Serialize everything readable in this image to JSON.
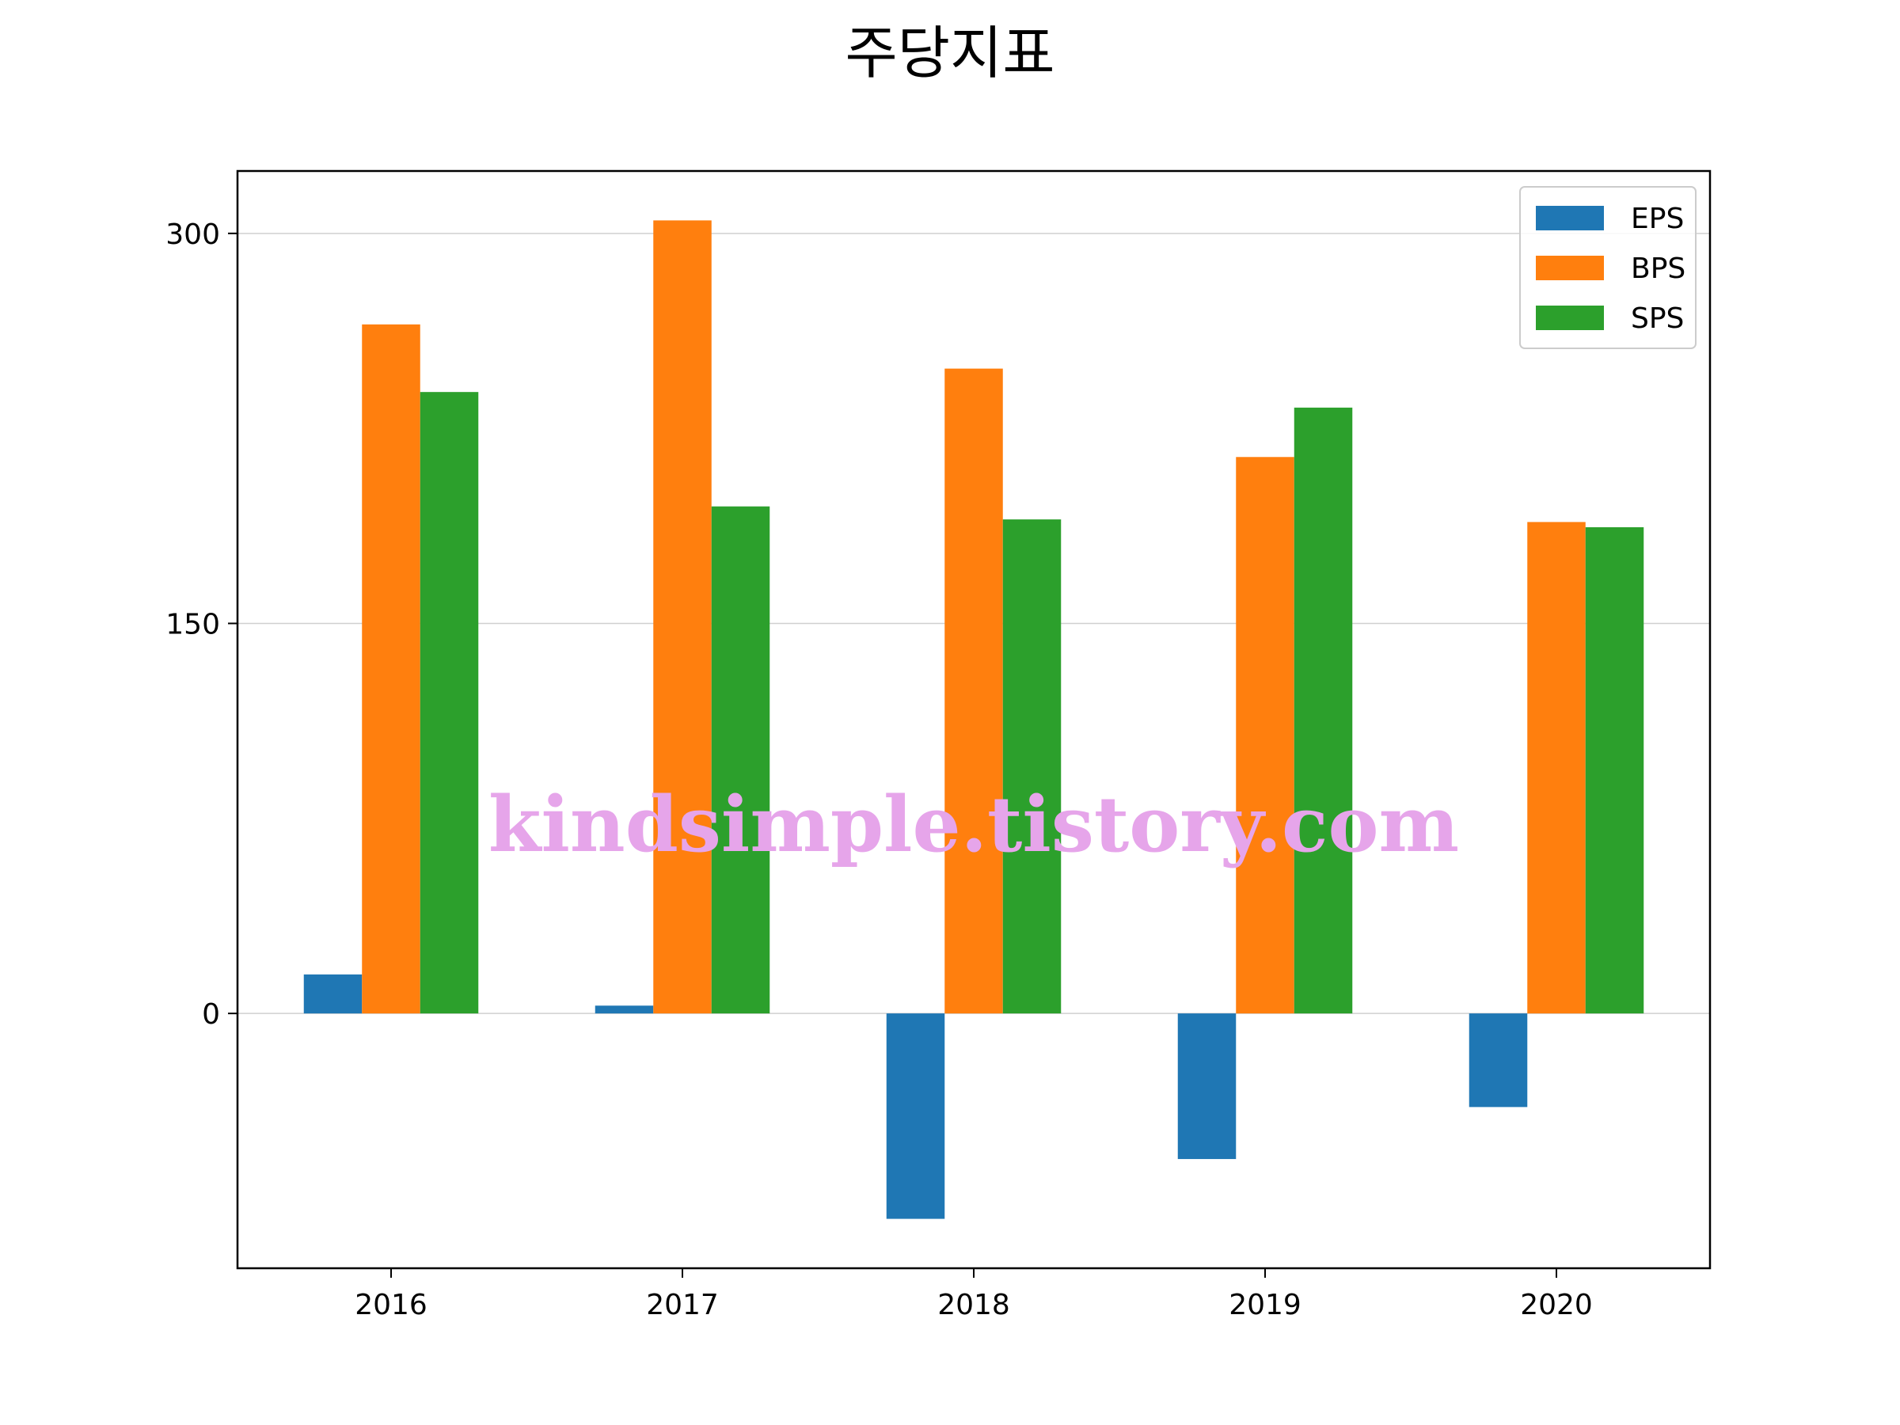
{
  "chart_data": {
    "type": "bar",
    "title": "주당지표",
    "categories": [
      "2016",
      "2017",
      "2018",
      "2019",
      "2020"
    ],
    "series": [
      {
        "name": "EPS",
        "values": [
          15,
          3,
          -79,
          -56,
          -36
        ],
        "color": "#1f77b4"
      },
      {
        "name": "BPS",
        "values": [
          265,
          305,
          248,
          214,
          189
        ],
        "color": "#ff7f0e"
      },
      {
        "name": "SPS",
        "values": [
          239,
          195,
          190,
          233,
          187
        ],
        "color": "#2ca02c"
      }
    ],
    "yticks": [
      0,
      150,
      300
    ],
    "ylim": [
      -98,
      324
    ],
    "grid": "horizontal",
    "legend_position": "top-right",
    "xlabel": "",
    "ylabel": ""
  },
  "watermark": "kindsimple.tistory.com"
}
